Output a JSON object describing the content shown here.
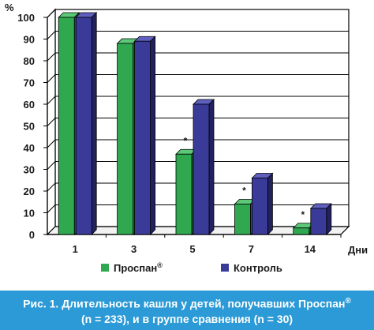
{
  "chart_data": {
    "type": "bar",
    "categories": [
      "1",
      "3",
      "5",
      "7",
      "14"
    ],
    "series": [
      {
        "name": "Проспан®",
        "values": [
          100,
          88,
          37,
          14,
          3
        ]
      },
      {
        "name": "Контроль",
        "values": [
          100,
          89,
          60,
          26,
          12
        ]
      }
    ],
    "significance_markers": [
      "",
      "",
      "*",
      "*",
      "*"
    ],
    "xlabel": "Дни",
    "ylabel": "%",
    "ylim": [
      0,
      100
    ],
    "yticks": [
      0,
      10,
      20,
      30,
      40,
      50,
      60,
      70,
      80,
      90,
      100
    ],
    "legend_position": "bottom",
    "grid": true
  },
  "colors": {
    "series1_front": "#2fa84f",
    "series1_side": "#1d6e33",
    "series1_top": "#5cc878",
    "series2_front": "#3a3a99",
    "series2_side": "#22225e",
    "series2_top": "#5f5fbf",
    "caption_bg": "#2b9ad6"
  },
  "caption": {
    "line1": "Рис. 1. Длительность кашля у детей, получавших Проспан",
    "line1_sup": "®",
    "line2": "(n = 233), и в группе сравнения (n = 30)"
  },
  "legend": {
    "item1": "Проспан",
    "item1_sup": "®",
    "item2": "Контроль"
  }
}
